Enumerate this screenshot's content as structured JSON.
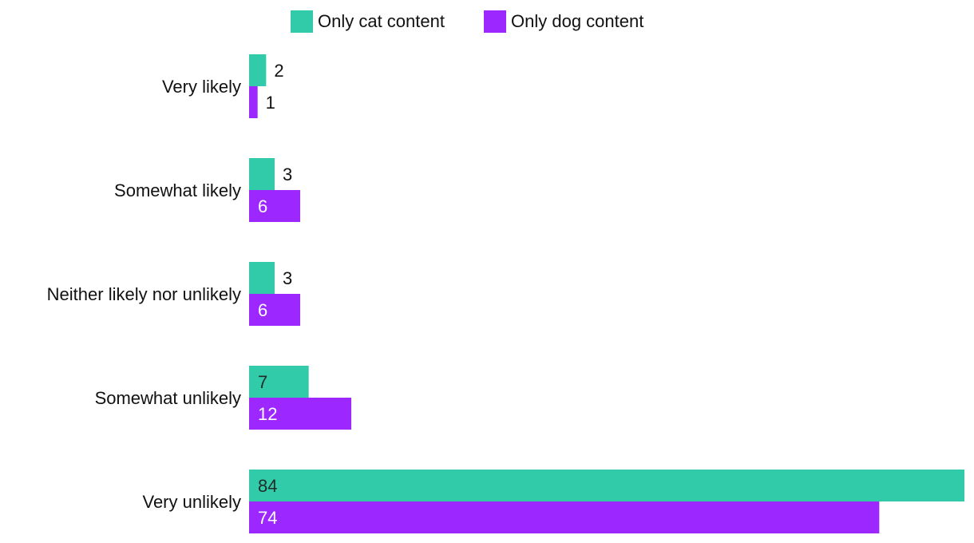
{
  "chart_data": {
    "type": "bar",
    "orientation": "horizontal",
    "categories": [
      "Very likely",
      "Somewhat likely",
      "Neither likely nor unlikely",
      "Somewhat unlikely",
      "Very unlikely"
    ],
    "series": [
      {
        "name": "Only cat content",
        "color": "#32cbaa",
        "values": [
          2,
          3,
          3,
          7,
          84
        ]
      },
      {
        "name": "Only dog content",
        "color": "#9c27ff",
        "values": [
          1,
          6,
          6,
          12,
          74
        ]
      }
    ],
    "xlim": [
      0,
      84
    ],
    "grid": false,
    "legend": "top-center",
    "data_labels": true
  }
}
